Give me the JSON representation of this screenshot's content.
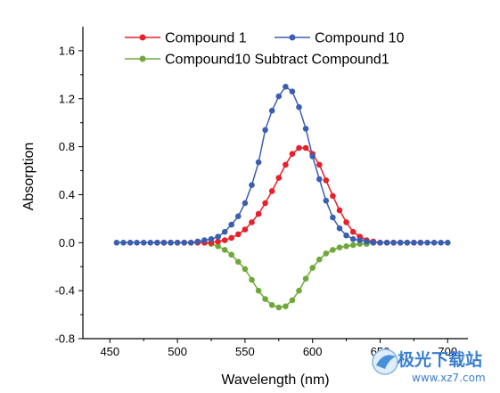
{
  "chart_data": {
    "type": "line",
    "title": "",
    "xlabel": "Wavelength (nm)",
    "ylabel": "Absorption",
    "xlim": [
      430,
      715
    ],
    "ylim": [
      -0.8,
      1.8
    ],
    "xticks": [
      450,
      500,
      550,
      600,
      650,
      700
    ],
    "yticks": [
      -0.8,
      -0.4,
      0.0,
      0.4,
      0.8,
      1.2,
      1.6
    ],
    "xtick_labels": [
      "450",
      "500",
      "550",
      "600",
      "650",
      "700"
    ],
    "ytick_labels": [
      "-0.8",
      "-0.4",
      "0.0",
      "0.4",
      "0.8",
      "1.2",
      "1.6"
    ],
    "grid": false,
    "legend_position": "top",
    "series": [
      {
        "name": "Compound 1",
        "color": "#e8202a",
        "x": [
          485,
          490,
          495,
          500,
          505,
          510,
          515,
          520,
          525,
          530,
          535,
          540,
          545,
          550,
          555,
          560,
          565,
          570,
          575,
          580,
          585,
          590,
          595,
          600,
          605,
          610,
          615,
          620,
          625,
          630,
          635,
          640,
          645,
          650,
          655,
          660,
          665,
          670,
          675,
          680
        ],
        "y": [
          0.0,
          0.0,
          0.0,
          0.0,
          0.0,
          0.0,
          0.0,
          0.0,
          0.0,
          0.01,
          0.02,
          0.04,
          0.07,
          0.11,
          0.17,
          0.24,
          0.33,
          0.43,
          0.54,
          0.65,
          0.74,
          0.79,
          0.79,
          0.74,
          0.65,
          0.52,
          0.39,
          0.27,
          0.17,
          0.09,
          0.05,
          0.02,
          0.01,
          0.0,
          0.0,
          0.0,
          0.0,
          0.0,
          0.0,
          0.0
        ]
      },
      {
        "name": "Compound 10",
        "color": "#3b5fb0",
        "x": [
          455,
          460,
          465,
          470,
          475,
          480,
          485,
          490,
          495,
          500,
          505,
          510,
          515,
          520,
          525,
          530,
          535,
          540,
          545,
          550,
          555,
          560,
          565,
          570,
          575,
          580,
          585,
          590,
          595,
          600,
          605,
          610,
          615,
          620,
          625,
          630,
          635,
          640,
          645,
          650,
          655,
          660,
          665,
          670,
          675,
          680,
          685,
          690,
          695,
          700
        ],
        "y": [
          0.0,
          0.0,
          0.0,
          0.0,
          0.0,
          0.0,
          0.0,
          0.0,
          0.0,
          0.0,
          0.0,
          0.0,
          0.01,
          0.02,
          0.03,
          0.05,
          0.09,
          0.15,
          0.22,
          0.33,
          0.48,
          0.67,
          0.94,
          1.1,
          1.22,
          1.3,
          1.26,
          1.13,
          0.95,
          0.72,
          0.53,
          0.35,
          0.21,
          0.12,
          0.06,
          0.03,
          0.02,
          0.01,
          0.0,
          0.0,
          0.0,
          0.0,
          0.0,
          0.0,
          0.0,
          0.0,
          0.0,
          0.0,
          0.0,
          0.0
        ]
      },
      {
        "name": "Compound10 Subtract Compound1",
        "color": "#6fa83a",
        "x": [
          485,
          490,
          495,
          500,
          505,
          510,
          515,
          520,
          525,
          530,
          535,
          540,
          545,
          550,
          555,
          560,
          565,
          570,
          575,
          580,
          585,
          590,
          595,
          600,
          605,
          610,
          615,
          620,
          625,
          630,
          635,
          640,
          645,
          650,
          655,
          660,
          665,
          670,
          675,
          680
        ],
        "y": [
          0.0,
          0.0,
          0.0,
          0.0,
          0.0,
          0.0,
          0.0,
          0.0,
          -0.01,
          -0.03,
          -0.06,
          -0.1,
          -0.16,
          -0.22,
          -0.31,
          -0.4,
          -0.47,
          -0.52,
          -0.54,
          -0.53,
          -0.48,
          -0.4,
          -0.3,
          -0.21,
          -0.14,
          -0.09,
          -0.06,
          -0.04,
          -0.03,
          -0.02,
          -0.01,
          -0.01,
          0.0,
          0.0,
          0.0,
          0.0,
          0.0,
          0.0,
          0.0,
          0.0
        ]
      }
    ]
  },
  "watermark": {
    "brand_text": "极光下载站",
    "url_text": "www.xz7.com"
  }
}
